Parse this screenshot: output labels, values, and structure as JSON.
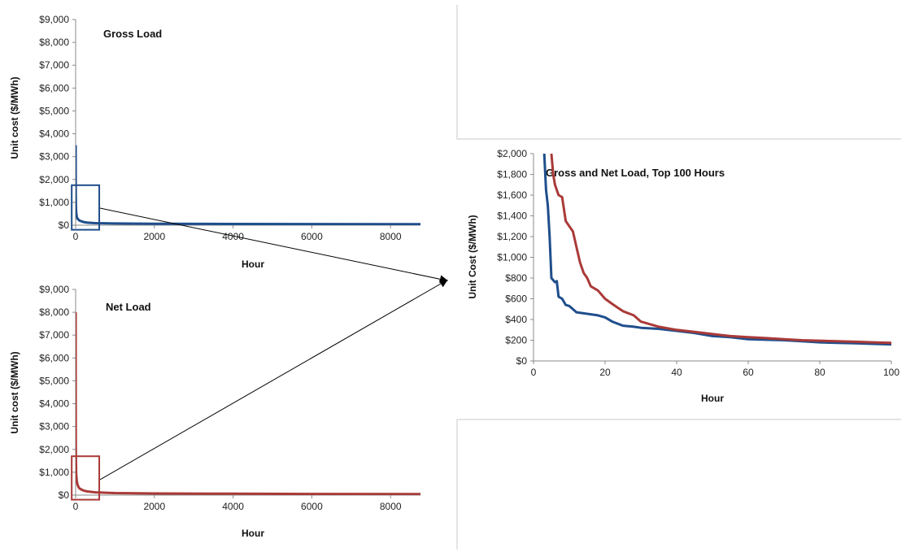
{
  "chart_data": [
    {
      "id": "gross",
      "type": "line",
      "title": "Gross Load",
      "xlabel": "Hour",
      "ylabel": "Unit cost ($/MWh)",
      "xlim": [
        0,
        8760
      ],
      "ylim": [
        0,
        9000
      ],
      "xticks": [
        0,
        2000,
        4000,
        6000,
        8000
      ],
      "xtick_labels": [
        "0",
        "2000",
        "4000",
        "6000",
        "8000"
      ],
      "yticks": [
        0,
        1000,
        2000,
        3000,
        4000,
        5000,
        6000,
        7000,
        8000,
        9000
      ],
      "ytick_labels": [
        "$0",
        "$1,000",
        "$2,000",
        "$3,000",
        "$4,000",
        "$5,000",
        "$6,000",
        "$7,000",
        "$8,000",
        "$9,000"
      ],
      "grid": false,
      "series": [
        {
          "color": "#1f4e8c",
          "x": [
            1,
            2,
            4,
            8,
            15,
            30,
            50,
            80,
            100,
            150,
            200,
            300,
            500,
            1000,
            2000,
            4000,
            6000,
            8760
          ],
          "y": [
            3500,
            2000,
            1300,
            800,
            550,
            350,
            280,
            230,
            200,
            170,
            140,
            110,
            90,
            75,
            65,
            55,
            50,
            45
          ]
        }
      ],
      "zoom_box": {
        "x": [
          -100,
          600
        ],
        "y": [
          -200,
          1750
        ],
        "color": "#1f4e8c"
      }
    },
    {
      "id": "net",
      "type": "line",
      "title": "Net Load",
      "xlabel": "Hour",
      "ylabel": "Unit cost ($/MWh)",
      "xlim": [
        0,
        8760
      ],
      "ylim": [
        0,
        9000
      ],
      "xticks": [
        0,
        2000,
        4000,
        6000,
        8000
      ],
      "xtick_labels": [
        "0",
        "2000",
        "4000",
        "6000",
        "8000"
      ],
      "yticks": [
        0,
        1000,
        2000,
        3000,
        4000,
        5000,
        6000,
        7000,
        8000,
        9000
      ],
      "ytick_labels": [
        "$0",
        "$1,000",
        "$2,000",
        "$3,000",
        "$4,000",
        "$5,000",
        "$6,000",
        "$7,000",
        "$8,000",
        "$9,000"
      ],
      "grid": false,
      "series": [
        {
          "color": "#a93a38",
          "x": [
            1,
            2,
            4,
            8,
            15,
            30,
            50,
            80,
            100,
            150,
            200,
            300,
            500,
            1000,
            2000,
            4000,
            6000,
            8760
          ],
          "y": [
            8000,
            4000,
            2200,
            1500,
            900,
            600,
            450,
            330,
            290,
            240,
            200,
            160,
            120,
            90,
            70,
            60,
            50,
            45
          ]
        }
      ],
      "zoom_box": {
        "x": [
          -100,
          600
        ],
        "y": [
          -200,
          1700
        ],
        "color": "#a93a38"
      }
    },
    {
      "id": "top100",
      "type": "line",
      "title": "Gross and Net Load, Top 100 Hours",
      "xlabel": "Hour",
      "ylabel": "Unit Cost ($/MWh)",
      "xlim": [
        0,
        100
      ],
      "ylim": [
        0,
        2000
      ],
      "xticks": [
        0,
        20,
        40,
        60,
        80,
        100
      ],
      "xtick_labels": [
        "0",
        "20",
        "40",
        "60",
        "80",
        "100"
      ],
      "yticks": [
        0,
        200,
        400,
        600,
        800,
        1000,
        1200,
        1400,
        1600,
        1800,
        2000
      ],
      "ytick_labels": [
        "$0",
        "$200",
        "$400",
        "$600",
        "$800",
        "$1,000",
        "$1,200",
        "$1,400",
        "$1,600",
        "$1,800",
        "$2,000"
      ],
      "grid": false,
      "series": [
        {
          "color": "#1f4e8c",
          "x": [
            3,
            3.5,
            4,
            4.5,
            5,
            5.5,
            6,
            6.5,
            7,
            8,
            9,
            10,
            12,
            14,
            16,
            18,
            20,
            22,
            25,
            28,
            30,
            35,
            40,
            45,
            50,
            55,
            60,
            65,
            70,
            75,
            80,
            85,
            90,
            95,
            100
          ],
          "y": [
            2000,
            1650,
            1500,
            1200,
            800,
            780,
            760,
            770,
            620,
            600,
            540,
            530,
            470,
            460,
            450,
            440,
            420,
            380,
            340,
            330,
            320,
            310,
            290,
            270,
            240,
            230,
            210,
            205,
            200,
            190,
            180,
            175,
            170,
            165,
            160
          ]
        },
        {
          "color": "#a93a38",
          "x": [
            5,
            5.5,
            6,
            7,
            8,
            9,
            10,
            11,
            12,
            13,
            14,
            15,
            16,
            18,
            20,
            22,
            25,
            28,
            30,
            35,
            40,
            45,
            50,
            55,
            60,
            65,
            70,
            75,
            80,
            85,
            90,
            95,
            100
          ],
          "y": [
            2000,
            1800,
            1700,
            1600,
            1580,
            1350,
            1300,
            1250,
            1100,
            950,
            850,
            800,
            720,
            680,
            600,
            550,
            480,
            440,
            380,
            330,
            300,
            280,
            260,
            240,
            230,
            220,
            210,
            200,
            195,
            190,
            185,
            180,
            175
          ]
        }
      ]
    }
  ]
}
